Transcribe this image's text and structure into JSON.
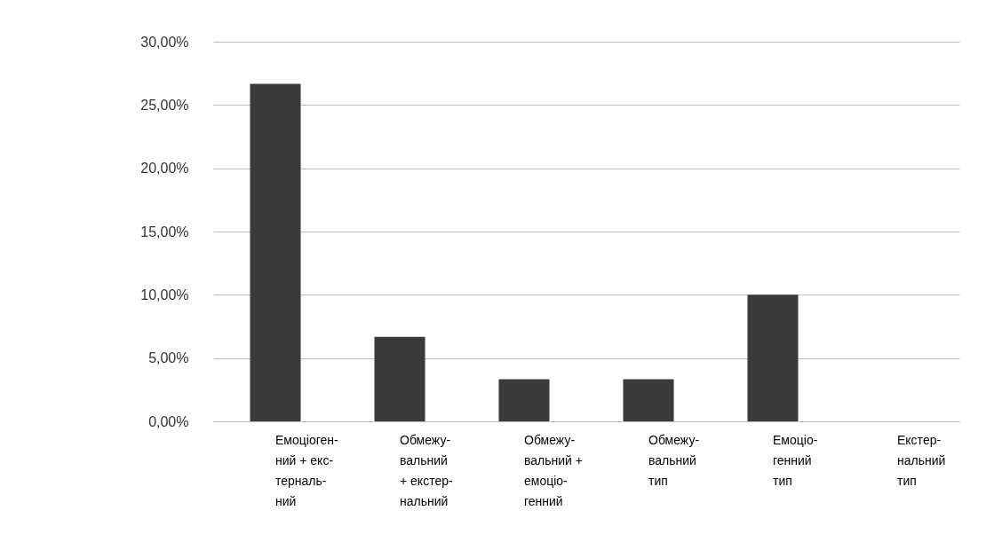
{
  "chart_data": {
    "type": "bar",
    "categories": [
      "Емоціоген-\nний  + екс-\nтерналь-\nний",
      "Обмежу-\nвальний\n+ екстер-\nнальний",
      "Обмежу-\nвальний +\nемоціо-\nгенний",
      "Обмежу-\nвальний\nтип",
      "Емоціо-\nгенний\nтип",
      "Екстер-\nнальний\nтип"
    ],
    "values": [
      26.67,
      6.67,
      3.33,
      3.33,
      10,
      0
    ],
    "color": "#3a3a3a",
    "ylim": [
      0,
      30
    ],
    "yticks": [
      {
        "value": 0,
        "label": "0,00%"
      },
      {
        "value": 5,
        "label": "5,00%"
      },
      {
        "value": 10,
        "label": "10,00%"
      },
      {
        "value": 15,
        "label": "15,00%"
      },
      {
        "value": 20,
        "label": "20,00%"
      },
      {
        "value": 25,
        "label": "25,00%"
      },
      {
        "value": 30,
        "label": "30,00%"
      }
    ],
    "grid": "y"
  }
}
